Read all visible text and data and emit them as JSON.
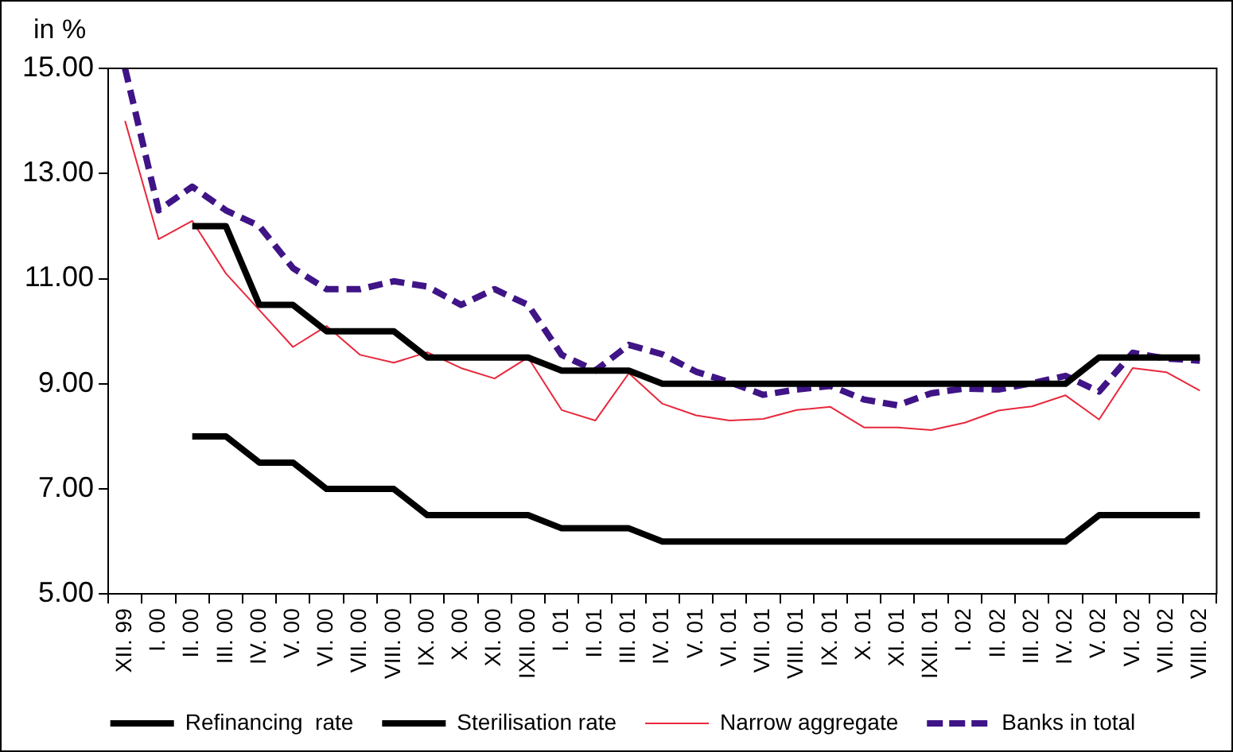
{
  "chart_data": {
    "type": "line",
    "ylabel": "in %",
    "categories": [
      "XII. 99",
      "I. 00",
      "II. 00",
      "III. 00",
      "IV. 00",
      "V. 00",
      "VI. 00",
      "VII. 00",
      "VIII. 00",
      "IX. 00",
      "X. 00",
      "XI. 00",
      "IXII. 00",
      "I. 01",
      "II. 01",
      "III. 01",
      "IV. 01",
      "V. 01",
      "VI. 01",
      "VII. 01",
      "VIII. 01",
      "IX. 01",
      "X. 01",
      "XI. 01",
      "IXII. 01",
      "I. 02",
      "II. 02",
      "III. 02",
      "IV. 02",
      "V. 02",
      "VI. 02",
      "VII. 02",
      "VIII. 02"
    ],
    "series": [
      {
        "name": "Refinancing  rate",
        "color": "#000000",
        "values": [
          null,
          null,
          12,
          12,
          10.5,
          10.5,
          10,
          10,
          10,
          9.5,
          9.5,
          9.5,
          9.5,
          9.25,
          9.25,
          9.25,
          9,
          9,
          9,
          9,
          9,
          9,
          9,
          9,
          9,
          9,
          9,
          9,
          9,
          9.5,
          9.5,
          9.5,
          9.5
        ]
      },
      {
        "name": "Sterilisation rate",
        "color": "#000000",
        "values": [
          null,
          null,
          8,
          8,
          7.5,
          7.5,
          7,
          7,
          7,
          6.5,
          6.5,
          6.5,
          6.5,
          6.25,
          6.25,
          6.25,
          6,
          6,
          6,
          6,
          6,
          6,
          6,
          6,
          6,
          6,
          6,
          6,
          6,
          6.5,
          6.5,
          6.5,
          6.5
        ]
      },
      {
        "name": "Narrow aggregate",
        "color": "#e8283c",
        "values": [
          14.0,
          11.75,
          12.1,
          11.1,
          10.4,
          9.7,
          10.1,
          9.55,
          9.4,
          9.6,
          9.3,
          9.1,
          9.5,
          8.5,
          8.3,
          9.2,
          8.62,
          8.4,
          8.3,
          8.33,
          8.5,
          8.56,
          8.17,
          8.17,
          8.12,
          8.26,
          8.49,
          8.57,
          8.78,
          8.32,
          9.3,
          9.22,
          8.87
        ]
      },
      {
        "name": "Banks in total",
        "color": "#3f1486",
        "line_style": "dashed",
        "values": [
          15.0,
          12.3,
          12.75,
          12.3,
          12.0,
          11.2,
          10.8,
          10.8,
          10.95,
          10.85,
          10.5,
          10.8,
          10.5,
          9.55,
          9.25,
          9.74,
          9.56,
          9.23,
          9.03,
          8.79,
          8.89,
          8.96,
          8.7,
          8.59,
          8.82,
          8.91,
          8.89,
          9.01,
          9.15,
          8.85,
          9.59,
          9.48,
          9.44
        ]
      }
    ],
    "ylim": [
      5,
      15
    ],
    "yticks": [
      {
        "value": 5,
        "label": "5.00"
      },
      {
        "value": 7,
        "label": "7.00"
      },
      {
        "value": 9,
        "label": "9.00"
      },
      {
        "value": 11,
        "label": "11.00"
      },
      {
        "value": 13,
        "label": "13.00"
      },
      {
        "value": 15,
        "label": "15.00"
      }
    ],
    "grid": false,
    "legend": "bottom",
    "marker": "none",
    "line_style": "solid"
  }
}
